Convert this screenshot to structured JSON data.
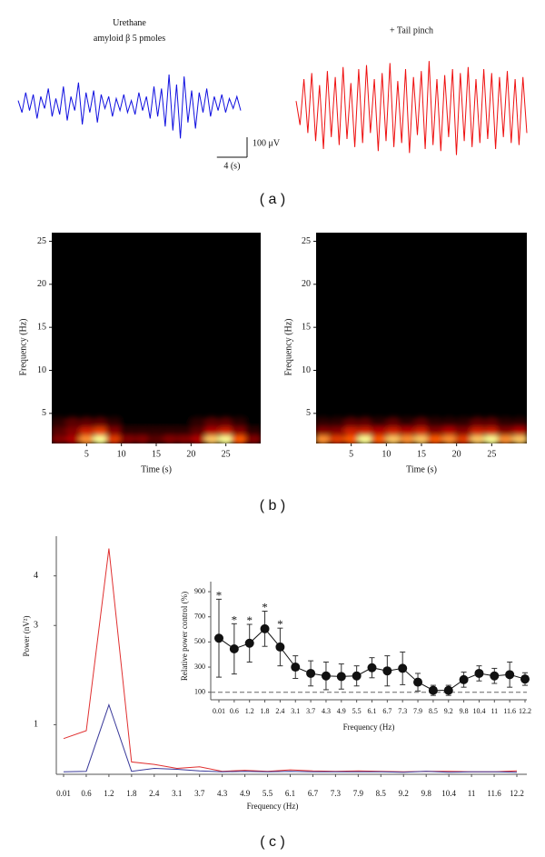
{
  "chart_data": [
    {
      "type": "trace",
      "caption": "( a )",
      "sample_interval": 0.5,
      "scale_bar": {
        "amplitude": 100,
        "amplitude_label": "100 μV",
        "duration": 4,
        "duration_label": "4 (s)"
      },
      "series": [
        {
          "label": [
            "Urethane",
            "amyloid β 5 pmoles"
          ],
          "color": "#1010e0",
          "values": [
            20,
            -40,
            60,
            -30,
            50,
            -70,
            40,
            -20,
            80,
            -60,
            30,
            -50,
            90,
            -80,
            40,
            -30,
            110,
            -100,
            60,
            -40,
            70,
            -90,
            50,
            -20,
            40,
            -60,
            30,
            -30,
            50,
            -40,
            20,
            -50,
            60,
            -30,
            40,
            -70,
            90,
            -60,
            80,
            -110,
            150,
            -130,
            100,
            -170,
            140,
            -90,
            70,
            -120,
            60,
            -40,
            80,
            -60,
            40,
            -30,
            50,
            -40,
            30,
            -20,
            40,
            -30
          ]
        },
        {
          "label": [
            "+ Tail pinch"
          ],
          "color": "#ee1010",
          "values": [
            40,
            -80,
            150,
            -120,
            180,
            -160,
            120,
            -200,
            190,
            -140,
            160,
            -180,
            210,
            -150,
            130,
            -190,
            200,
            -170,
            220,
            -120,
            150,
            -210,
            180,
            -160,
            230,
            -190,
            140,
            -170,
            200,
            -220,
            160,
            -130,
            190,
            -200,
            240,
            -180,
            150,
            -210,
            170,
            -140,
            200,
            -230,
            180,
            -160,
            210,
            -190,
            150,
            -170,
            200,
            -150,
            180,
            -200,
            160,
            -140,
            190,
            -170,
            150,
            -180,
            160,
            -120
          ]
        }
      ]
    },
    {
      "type": "heatmap",
      "caption": "( b )",
      "xlabel": "Time (s)",
      "ylabel": "Frequency (Hz)",
      "xlim": [
        0,
        30
      ],
      "ylim": [
        1.5,
        26
      ],
      "xticks": [
        5,
        10,
        15,
        20,
        25
      ],
      "yticks": [
        5,
        10,
        15,
        20,
        25
      ],
      "frequencies": [
        2,
        3,
        4
      ],
      "times": [
        1,
        3,
        5,
        7,
        9,
        11,
        13,
        15,
        17,
        19,
        21,
        23,
        25,
        27,
        29
      ],
      "maps": [
        [
          [
            0.3,
            0.4,
            0.8,
            1,
            0.6,
            0.3,
            0.3,
            0.2,
            0.3,
            0.3,
            0.4,
            0.9,
            1,
            0.7,
            0.3
          ],
          [
            0.2,
            0.3,
            0.5,
            0.6,
            0.3,
            0.1,
            0.1,
            0.1,
            0.1,
            0.1,
            0.2,
            0.4,
            0.5,
            0.3,
            0.1
          ],
          [
            0.1,
            0.2,
            0.2,
            0.2,
            0.1,
            0,
            0,
            0,
            0,
            0,
            0.1,
            0.2,
            0.2,
            0.1,
            0
          ]
        ],
        [
          [
            0.8,
            0.6,
            0.7,
            1,
            0.7,
            0.9,
            0.8,
            0.9,
            0.7,
            0.8,
            0.6,
            0.9,
            1,
            0.8,
            0.9
          ],
          [
            0.3,
            0.3,
            0.5,
            0.5,
            0.4,
            0.5,
            0.4,
            0.5,
            0.3,
            0.4,
            0.3,
            0.5,
            0.5,
            0.3,
            0.4
          ],
          [
            0.1,
            0.1,
            0.2,
            0.2,
            0.1,
            0.2,
            0.1,
            0.2,
            0.1,
            0.1,
            0.1,
            0.2,
            0.2,
            0.1,
            0.1
          ]
        ]
      ]
    },
    {
      "type": "line",
      "caption": "( c )",
      "xlabel": "Frequency (Hz)",
      "ylabel": "Power (nV²)",
      "categories": [
        "0.01",
        "0.6",
        "1.2",
        "1.8",
        "2.4",
        "3.1",
        "3.7",
        "4.3",
        "4.9",
        "5.5",
        "6.1",
        "6.7",
        "7.3",
        "7.9",
        "8.5",
        "9.2",
        "9.8",
        "10.4",
        "11",
        "11.6",
        "12.2"
      ],
      "ylim": [
        0,
        4.8
      ],
      "yticks": [
        1,
        3,
        4
      ],
      "series": [
        {
          "color": "#e03030",
          "values": [
            0.72,
            0.88,
            4.55,
            0.25,
            0.2,
            0.12,
            0.15,
            0.06,
            0.08,
            0.06,
            0.09,
            0.07,
            0.06,
            0.07,
            0.06,
            0.05,
            0.06,
            0.06,
            0.05,
            0.05,
            0.07
          ]
        },
        {
          "color": "#3a3a9a",
          "values": [
            0.05,
            0.06,
            1.4,
            0.06,
            0.12,
            0.1,
            0.07,
            0.05,
            0.06,
            0.05,
            0.06,
            0.05,
            0.05,
            0.05,
            0.05,
            0.04,
            0.06,
            0.04,
            0.05,
            0.05,
            0.04
          ]
        }
      ]
    },
    {
      "type": "errorbar",
      "xlabel": "Frequency (Hz)",
      "ylabel": "Relative power control (%)",
      "categories": [
        "0.01",
        "0.6",
        "1.2",
        "1.8",
        "2.4",
        "3.1",
        "3.7",
        "4.3",
        "4.9",
        "5.5",
        "6.1",
        "6.7",
        "7.3",
        "7.9",
        "8.5",
        "9.2",
        "9.8",
        "10.4",
        "11",
        "11.6",
        "12.2"
      ],
      "ylim": [
        40,
        980
      ],
      "yticks": [
        100,
        300,
        500,
        700,
        900
      ],
      "reference_line": 100,
      "color": "#111111",
      "values": [
        530,
        445,
        490,
        605,
        460,
        300,
        250,
        230,
        225,
        230,
        295,
        270,
        290,
        180,
        115,
        115,
        200,
        250,
        230,
        240,
        205
      ],
      "errors": [
        310,
        200,
        150,
        140,
        150,
        90,
        100,
        110,
        100,
        80,
        80,
        120,
        130,
        70,
        40,
        40,
        60,
        60,
        60,
        100,
        50
      ],
      "annotations": [
        "*",
        "*",
        "*",
        "*",
        "*",
        null,
        null,
        null,
        null,
        null,
        null,
        null,
        null,
        null,
        null,
        null,
        null,
        null,
        null,
        null,
        null
      ]
    }
  ]
}
